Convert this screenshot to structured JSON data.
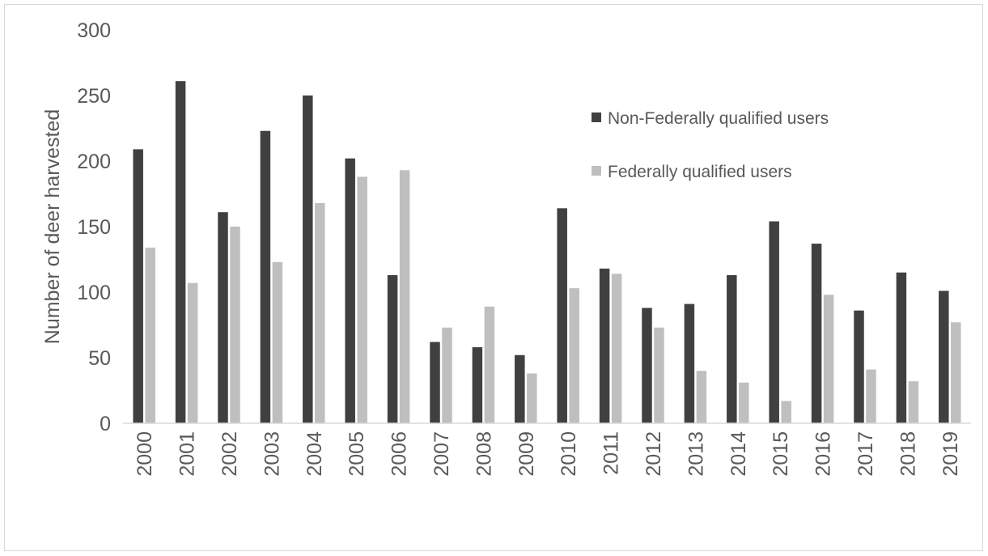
{
  "chart_data": {
    "type": "bar",
    "title": "",
    "xlabel": "",
    "ylabel": "Number of deer harvested",
    "ylim": [
      0,
      300
    ],
    "yticks": [
      0,
      50,
      100,
      150,
      200,
      250,
      300
    ],
    "grid": false,
    "legend_position": "top-right",
    "categories": [
      "2000",
      "2001",
      "2002",
      "2003",
      "2004",
      "2005",
      "2006",
      "2007",
      "2008",
      "2009",
      "2010",
      "2011",
      "2012",
      "2013",
      "2014",
      "2015",
      "2016",
      "2017",
      "2018",
      "2019"
    ],
    "series": [
      {
        "name": "Non-Federally qualified users",
        "color": "#404040",
        "values": [
          209,
          261,
          161,
          223,
          250,
          202,
          113,
          62,
          58,
          52,
          164,
          118,
          88,
          91,
          113,
          154,
          137,
          86,
          115,
          101
        ]
      },
      {
        "name": "Federally qualified users",
        "color": "#bfbfbf",
        "values": [
          134,
          107,
          150,
          123,
          168,
          188,
          193,
          73,
          89,
          38,
          103,
          114,
          73,
          40,
          31,
          17,
          98,
          41,
          32,
          77
        ]
      }
    ]
  }
}
